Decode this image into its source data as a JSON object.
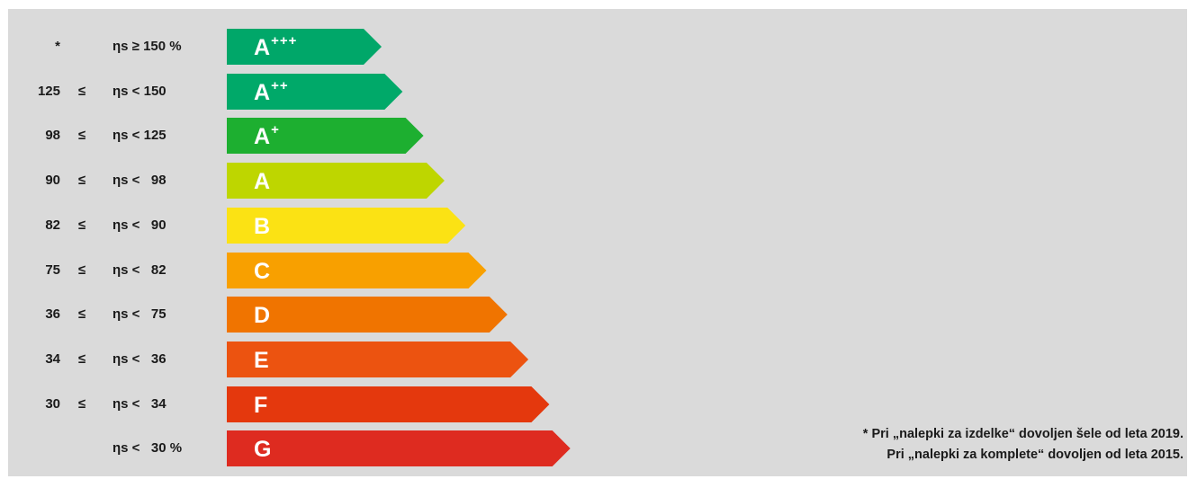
{
  "classes": [
    {
      "lower": "*",
      "rel": "",
      "eta": "ηs ≥ 150 %",
      "letter": "A",
      "plus": "+++",
      "color": "#00a769"
    },
    {
      "lower": "125",
      "rel": "≤",
      "eta": "ηs < 150",
      "letter": "A",
      "plus": "++",
      "color": "#00a969"
    },
    {
      "lower": "98",
      "rel": "≤",
      "eta": "ηs < 125",
      "letter": "A",
      "plus": "+",
      "color": "#1daf30"
    },
    {
      "lower": "90",
      "rel": "≤",
      "eta": "ηs <   98",
      "letter": "A",
      "plus": "",
      "color": "#bed600"
    },
    {
      "lower": "82",
      "rel": "≤",
      "eta": "ηs <   90",
      "letter": "B",
      "plus": "",
      "color": "#fbe214"
    },
    {
      "lower": "75",
      "rel": "≤",
      "eta": "ηs <   82",
      "letter": "C",
      "plus": "",
      "color": "#f8a000"
    },
    {
      "lower": "36",
      "rel": "≤",
      "eta": "ηs <   75",
      "letter": "D",
      "plus": "",
      "color": "#f07400"
    },
    {
      "lower": "34",
      "rel": "≤",
      "eta": "ηs <   36",
      "letter": "E",
      "plus": "",
      "color": "#ec5310"
    },
    {
      "lower": "30",
      "rel": "≤",
      "eta": "ηs <   34",
      "letter": "F",
      "plus": "",
      "color": "#e4380d"
    },
    {
      "lower": "",
      "rel": "",
      "eta": "ηs <   30 %",
      "letter": "G",
      "plus": "",
      "color": "#de2b20"
    }
  ],
  "footnote": {
    "line1": "* Pri „nalepki za izdelke“ dovoljen šele od leta 2019.",
    "line2": "Pri „nalepki za komplete“ dovoljen od leta 2015."
  }
}
